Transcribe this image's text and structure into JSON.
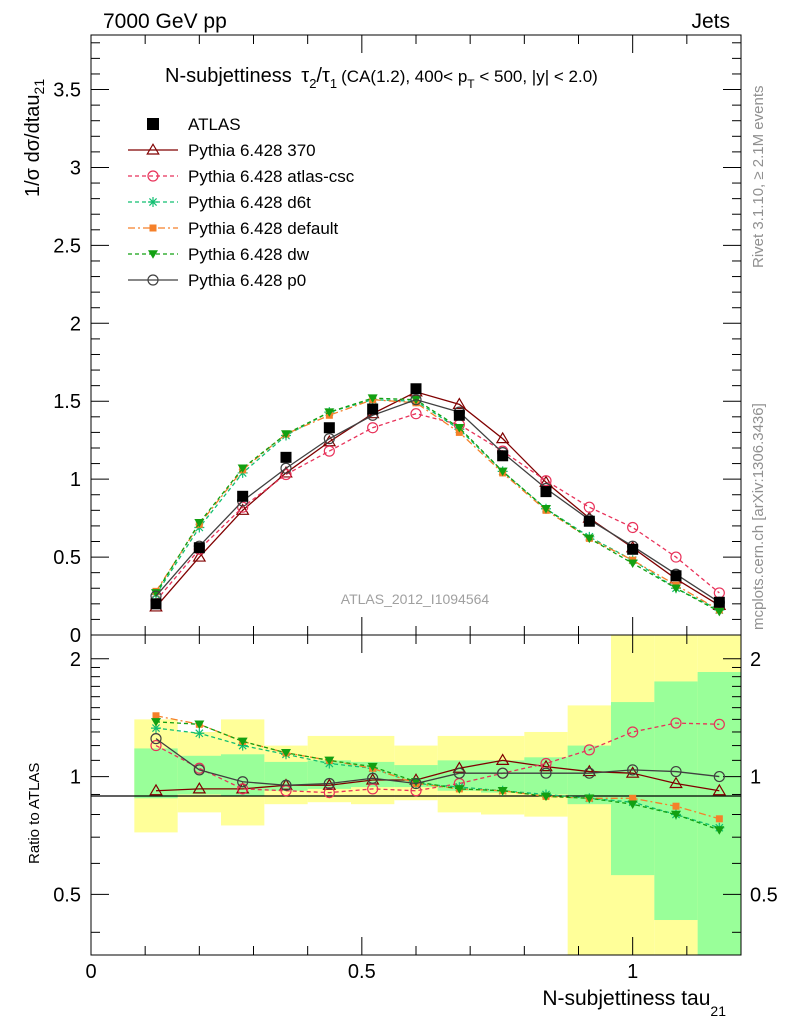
{
  "header": {
    "energy_label": "7000 GeV pp",
    "process_label": "Jets",
    "side_rivet": "Rivet 3.1.10, ≥ 2.1M events",
    "side_mcplots": "mcplots.cern.ch [arXiv:1306.3436]",
    "watermark": "ATLAS_2012_I1094564"
  },
  "chart_data": [
    {
      "type": "line",
      "title": "N-subjettiness τ₂/τ₁ (CA(1.2), 400< p_T < 500, |y| < 2.0)",
      "title_parts": {
        "main": "N-subjettiness",
        "tau": "τ",
        "sub2": "2",
        "slash": "/",
        "sub1": "1",
        "cuts_a": "(CA(1.2), 400< p",
        "sub_T": "T",
        "cuts_b": " < 500, |y| < 2.0)"
      },
      "ylabel": "1/σ dσ/dtau",
      "ylabel_sub": "21",
      "xlim": [
        0,
        1.2
      ],
      "ylim": [
        0,
        3.85
      ],
      "y_ticks": [
        0,
        0.5,
        1,
        1.5,
        2,
        2.5,
        3,
        3.5
      ],
      "y_tick_labels": [
        "0",
        "0.5",
        "1",
        "1.5",
        "2",
        "2.5",
        "3",
        "3.5"
      ],
      "x": [
        0.12,
        0.2,
        0.28,
        0.36,
        0.44,
        0.52,
        0.6,
        0.68,
        0.76,
        0.84,
        0.92,
        1.0,
        1.08,
        1.16
      ],
      "legend": {
        "placement": "top-left"
      },
      "data": {
        "name": "ATLAS",
        "values": [
          0.2,
          0.56,
          0.89,
          1.14,
          1.33,
          1.45,
          1.58,
          1.41,
          1.15,
          0.92,
          0.73,
          0.55,
          0.38,
          0.21
        ],
        "color": "#000000"
      },
      "series": [
        {
          "name": "Pythia 6.428 370",
          "color": "#800000",
          "dash": "",
          "marker": "triangle-open",
          "values": [
            0.18,
            0.5,
            0.8,
            1.04,
            1.24,
            1.42,
            1.56,
            1.48,
            1.26,
            0.98,
            0.75,
            0.56,
            0.36,
            0.19
          ]
        },
        {
          "name": "Pythia 6.428 atlas-csc",
          "color": "#e8325a",
          "dash": "4,3",
          "marker": "circle-open",
          "values": [
            0.22,
            0.55,
            0.82,
            1.03,
            1.18,
            1.33,
            1.42,
            1.35,
            1.18,
            0.99,
            0.82,
            0.69,
            0.5,
            0.27
          ]
        },
        {
          "name": "Pythia 6.428 d6t",
          "color": "#12bf72",
          "dash": "4,3",
          "marker": "star",
          "values": [
            0.26,
            0.69,
            1.04,
            1.28,
            1.43,
            1.51,
            1.5,
            1.32,
            1.05,
            0.81,
            0.63,
            0.48,
            0.3,
            0.16
          ]
        },
        {
          "name": "Pythia 6.428 default",
          "color": "#f5802a",
          "dash": "7,3,2,3",
          "marker": "square",
          "values": [
            0.28,
            0.71,
            1.06,
            1.29,
            1.41,
            1.51,
            1.49,
            1.3,
            1.04,
            0.8,
            0.62,
            0.48,
            0.32,
            0.16
          ]
        },
        {
          "name": "Pythia 6.428 dw",
          "color": "#12a012",
          "dash": "4,3",
          "marker": "triangle-down",
          "values": [
            0.27,
            0.72,
            1.07,
            1.29,
            1.43,
            1.52,
            1.51,
            1.33,
            1.05,
            0.81,
            0.62,
            0.46,
            0.3,
            0.15
          ]
        },
        {
          "name": "Pythia 6.428 p0",
          "color": "#404040",
          "dash": "",
          "marker": "circle-open",
          "values": [
            0.25,
            0.57,
            0.86,
            1.07,
            1.26,
            1.41,
            1.51,
            1.43,
            1.17,
            0.94,
            0.74,
            0.57,
            0.39,
            0.21
          ]
        }
      ]
    },
    {
      "type": "line",
      "ylabel": "Ratio to ATLAS",
      "xlabel": "N-subjettiness tau",
      "xlabel_sub": "21",
      "xlim": [
        0,
        1.2
      ],
      "ylim": [
        0.35,
        2.3
      ],
      "log_y": true,
      "y_ticks": [
        0.5,
        1,
        2
      ],
      "y_tick_labels": [
        "0.5",
        "1",
        "2"
      ],
      "x_ticks": [
        0,
        0.5,
        1
      ],
      "x_tick_labels": [
        "0",
        "0.5",
        "1"
      ],
      "bins": [
        [
          0.08,
          0.16
        ],
        [
          0.16,
          0.24
        ],
        [
          0.24,
          0.32
        ],
        [
          0.32,
          0.4
        ],
        [
          0.4,
          0.48
        ],
        [
          0.48,
          0.56
        ],
        [
          0.56,
          0.64
        ],
        [
          0.64,
          0.72
        ],
        [
          0.72,
          0.8
        ],
        [
          0.8,
          0.88
        ],
        [
          0.88,
          0.96
        ],
        [
          0.96,
          1.04
        ],
        [
          1.04,
          1.12
        ],
        [
          1.12,
          1.2
        ]
      ],
      "band_stat": [
        [
          0.88,
          1.18
        ],
        [
          0.9,
          1.13
        ],
        [
          0.89,
          1.14
        ],
        [
          0.92,
          1.09
        ],
        [
          0.93,
          1.1
        ],
        [
          0.94,
          1.09
        ],
        [
          0.94,
          1.07
        ],
        [
          0.92,
          1.1
        ],
        [
          0.91,
          1.1
        ],
        [
          0.9,
          1.12
        ],
        [
          0.85,
          1.2
        ],
        [
          0.56,
          1.55
        ],
        [
          0.43,
          1.75
        ],
        [
          0.35,
          1.85
        ]
      ],
      "band_total": [
        [
          0.72,
          1.4
        ],
        [
          0.81,
          1.3
        ],
        [
          0.75,
          1.4
        ],
        [
          0.85,
          1.2
        ],
        [
          0.86,
          1.27
        ],
        [
          0.85,
          1.27
        ],
        [
          0.87,
          1.2
        ],
        [
          0.81,
          1.27
        ],
        [
          0.8,
          1.27
        ],
        [
          0.79,
          1.3
        ],
        [
          0.35,
          1.52
        ],
        [
          0.35,
          2.3
        ],
        [
          0.35,
          2.3
        ],
        [
          0.35,
          2.3
        ]
      ],
      "x": [
        0.12,
        0.2,
        0.28,
        0.36,
        0.44,
        0.52,
        0.6,
        0.68,
        0.76,
        0.84,
        0.92,
        1.0,
        1.08,
        1.16
      ],
      "series": [
        {
          "name": "Pythia 6.428 370",
          "color": "#800000",
          "dash": "",
          "marker": "triangle-open",
          "values": [
            0.92,
            0.93,
            0.93,
            0.95,
            0.95,
            0.98,
            0.98,
            1.05,
            1.1,
            1.06,
            1.03,
            1.02,
            0.96,
            0.92
          ]
        },
        {
          "name": "Pythia 6.428 atlas-csc",
          "color": "#e8325a",
          "dash": "4,3",
          "marker": "circle-open",
          "values": [
            1.2,
            1.05,
            0.93,
            0.92,
            0.91,
            0.93,
            0.92,
            0.96,
            1.02,
            1.08,
            1.17,
            1.3,
            1.37,
            1.36
          ]
        },
        {
          "name": "Pythia 6.428 d6t",
          "color": "#12bf72",
          "dash": "4,3",
          "marker": "star",
          "values": [
            1.33,
            1.29,
            1.2,
            1.14,
            1.08,
            1.05,
            0.96,
            0.94,
            0.92,
            0.9,
            0.88,
            0.86,
            0.8,
            0.74
          ]
        },
        {
          "name": "Pythia 6.428 default",
          "color": "#f5802a",
          "dash": "7,3,2,3",
          "marker": "square",
          "values": [
            1.43,
            1.36,
            1.23,
            1.15,
            1.1,
            1.05,
            0.96,
            0.93,
            0.92,
            0.89,
            0.88,
            0.88,
            0.84,
            0.78
          ]
        },
        {
          "name": "Pythia 6.428 dw",
          "color": "#12a012",
          "dash": "4,3",
          "marker": "triangle-down",
          "values": [
            1.38,
            1.36,
            1.23,
            1.15,
            1.1,
            1.06,
            0.97,
            0.93,
            0.92,
            0.89,
            0.88,
            0.85,
            0.8,
            0.73
          ]
        },
        {
          "name": "Pythia 6.428 p0",
          "color": "#404040",
          "dash": "",
          "marker": "circle-open",
          "values": [
            1.25,
            1.04,
            0.97,
            0.95,
            0.96,
            0.99,
            0.96,
            1.02,
            1.02,
            1.02,
            1.02,
            1.04,
            1.03,
            1.0
          ]
        }
      ]
    }
  ]
}
